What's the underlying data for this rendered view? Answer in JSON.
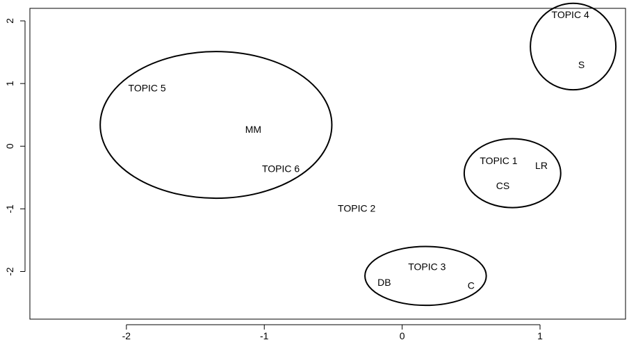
{
  "chart_data": {
    "type": "scatter",
    "title": "",
    "xlabel": "",
    "ylabel": "",
    "xlim": [
      -2.7,
      1.62
    ],
    "ylim": [
      -2.76,
      2.2
    ],
    "x_ticks": [
      -2,
      -1,
      0,
      1
    ],
    "x_tick_labels": [
      "-2",
      "-1",
      "0",
      "1"
    ],
    "y_ticks": [
      -2,
      -1,
      0,
      1,
      2
    ],
    "y_tick_labels": [
      "-2",
      "-1",
      "0",
      "1",
      "2"
    ],
    "grid": false,
    "points": [
      {
        "label": "TOPIC 4",
        "x": 1.22,
        "y": 2.1
      },
      {
        "label": "S",
        "x": 1.3,
        "y": 1.3
      },
      {
        "label": "TOPIC 5",
        "x": -1.85,
        "y": 0.93
      },
      {
        "label": "MM",
        "x": -1.08,
        "y": 0.27
      },
      {
        "label": "TOPIC 6",
        "x": -0.88,
        "y": -0.36
      },
      {
        "label": "TOPIC 1",
        "x": 0.7,
        "y": -0.23
      },
      {
        "label": "LR",
        "x": 1.01,
        "y": -0.31
      },
      {
        "label": "CS",
        "x": 0.73,
        "y": -0.63
      },
      {
        "label": "TOPIC 2",
        "x": -0.33,
        "y": -0.99
      },
      {
        "label": "TOPIC 3",
        "x": 0.18,
        "y": -1.92
      },
      {
        "label": "DB",
        "x": -0.13,
        "y": -2.17
      },
      {
        "label": "C",
        "x": 0.5,
        "y": -2.22
      }
    ],
    "ellipses": [
      {
        "cx": 1.24,
        "cy": 1.59,
        "rx": 0.31,
        "ry": 0.69
      },
      {
        "cx": -1.35,
        "cy": 0.34,
        "rx": 0.84,
        "ry": 1.17
      },
      {
        "cx": 0.8,
        "cy": -0.43,
        "rx": 0.35,
        "ry": 0.55
      },
      {
        "cx": 0.17,
        "cy": -2.07,
        "rx": 0.44,
        "ry": 0.47
      }
    ]
  }
}
